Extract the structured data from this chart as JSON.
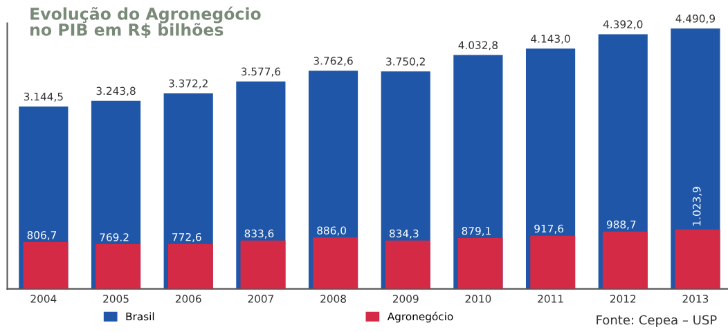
{
  "chart_data": {
    "type": "bar",
    "title": "Evolução do Agronegócio\nno PIB em R$ bilhões",
    "categories": [
      "2004",
      "2005",
      "2006",
      "2007",
      "2008",
      "2009",
      "2010",
      "2011",
      "2012",
      "2013"
    ],
    "series": [
      {
        "name": "Brasil",
        "color": "#1f56a8",
        "values": [
          3144.5,
          3243.8,
          3372.2,
          3577.6,
          3762.6,
          3750.2,
          4032.8,
          4143.0,
          4392.0,
          4490.9
        ],
        "value_labels": [
          "3.144,5",
          "3.243,8",
          "3.372,2",
          "3.577,6",
          "3.762,6",
          "3.750,2",
          "4.032,8",
          "4.143,0",
          "4.392,0",
          "4.490,9"
        ]
      },
      {
        "name": "Agronegócio",
        "color": "#d42a45",
        "values": [
          806.7,
          769.2,
          772.6,
          833.6,
          886.0,
          834.3,
          879.1,
          917.6,
          988.7,
          1023.9
        ],
        "value_labels": [
          "806,7",
          "769.2",
          "772,6",
          "833,6",
          "886,0",
          "834,3",
          "879,1",
          "917,6",
          "988,7",
          "1.023,9"
        ]
      }
    ],
    "legend": "bottom",
    "grid": false,
    "annotations": [
      "Fonte: Cepea – USP"
    ]
  }
}
